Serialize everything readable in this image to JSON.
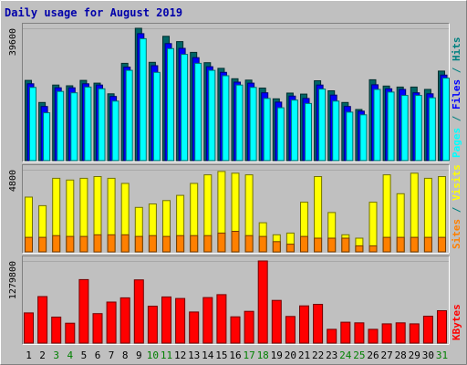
{
  "chart_data": {
    "type": "bar",
    "title": "Daily usage for August 2019",
    "categories": [
      "1",
      "2",
      "3",
      "4",
      "5",
      "6",
      "7",
      "8",
      "9",
      "10",
      "11",
      "12",
      "13",
      "14",
      "15",
      "16",
      "17",
      "18",
      "19",
      "20",
      "21",
      "22",
      "23",
      "24",
      "25",
      "26",
      "27",
      "28",
      "29",
      "30",
      "31"
    ],
    "weekend_days": [
      "3",
      "4",
      "10",
      "11",
      "17",
      "18",
      "24",
      "25",
      "31"
    ],
    "panels": [
      {
        "name": "pages-files-hits",
        "y_tick_label": "39600",
        "ymax": 39600,
        "series": [
          {
            "name": "Hits",
            "color": "#006666",
            "values": [
              24000,
              17400,
              22600,
              22400,
              24000,
              23200,
              20000,
              29100,
              39600,
              29400,
              37200,
              35600,
              32400,
              29300,
              27600,
              24500,
              24100,
              21700,
              18500,
              20200,
              19900,
              23900,
              20900,
              17400,
              15300,
              24200,
              22300,
              22000,
              22000,
              21300,
              26800
            ]
          },
          {
            "name": "Files",
            "color": "#0000ff",
            "values": [
              23000,
              16200,
              21800,
              21800,
              23000,
              22600,
              19200,
              28000,
              38000,
              28400,
              35000,
              33600,
              30800,
              28100,
              26400,
              23500,
              23200,
              20300,
              17500,
              19300,
              18600,
              22600,
              19600,
              16200,
              14800,
              22700,
              21500,
              21300,
              20300,
              20000,
              25600
            ]
          },
          {
            "name": "Pages",
            "color": "#00ffff",
            "values": [
              21900,
              14300,
              20700,
              20300,
              22000,
              21500,
              17800,
              27000,
              36500,
              26400,
              33500,
              31800,
              29100,
              27000,
              25400,
              22600,
              21900,
              18600,
              15800,
              18100,
              17100,
              21400,
              17800,
              14500,
              13700,
              21300,
              20500,
              19500,
              19500,
              18800,
              24700
            ]
          }
        ]
      },
      {
        "name": "visits-sites",
        "y_tick_label": "4800",
        "ymax": 4800,
        "series": [
          {
            "name": "Visits",
            "color": "#ffff00",
            "values": [
              3200,
              2700,
              4300,
              4200,
              4300,
              4400,
              4300,
              4000,
              2600,
              2800,
              3000,
              3300,
              4000,
              4500,
              4700,
              4600,
              4500,
              1700,
              1000,
              1100,
              2900,
              4400,
              2300,
              1000,
              800,
              2900,
              4500,
              3400,
              4600,
              4300,
              4400
            ]
          },
          {
            "name": "Sites",
            "color": "#ff8000",
            "values": [
              850,
              850,
              950,
              900,
              900,
              1000,
              1000,
              1000,
              900,
              950,
              900,
              950,
              950,
              950,
              1100,
              1200,
              950,
              900,
              600,
              450,
              900,
              800,
              800,
              800,
              350,
              350,
              850,
              850,
              850,
              850,
              850
            ]
          }
        ]
      },
      {
        "name": "kbytes",
        "y_tick_label": "1279800",
        "ymax": 1279800,
        "series": [
          {
            "name": "KBytes",
            "color": "#ff0000",
            "values": [
              470000,
              725000,
              405000,
              310000,
              990000,
              460000,
              640000,
              705000,
              985000,
              575000,
              720000,
              695000,
              485000,
              710000,
              755000,
              410000,
              495000,
              1279800,
              665000,
              415000,
              580000,
              605000,
              215000,
              325000,
              315000,
              215000,
              300000,
              315000,
              300000,
              420000,
              505000
            ]
          }
        ]
      }
    ],
    "right_labels": [
      [
        {
          "text": "Pages",
          "color": "#00ffff"
        },
        {
          "text": " / ",
          "color": "#008080"
        },
        {
          "text": "Files",
          "color": "#0000ff"
        },
        {
          "text": " / ",
          "color": "#008080"
        },
        {
          "text": "Hits",
          "color": "#008080"
        }
      ],
      [
        {
          "text": "Sites",
          "color": "#ff8000"
        },
        {
          "text": " / ",
          "color": "#008080"
        },
        {
          "text": "Visits",
          "color": "#ffff00"
        }
      ],
      [
        {
          "text": "KBytes",
          "color": "#ff0000"
        }
      ]
    ],
    "colors": {
      "background": "#c0c0c0",
      "title": "#0000aa",
      "weekday_label": "#000000",
      "weekend_label": "#008000"
    }
  }
}
